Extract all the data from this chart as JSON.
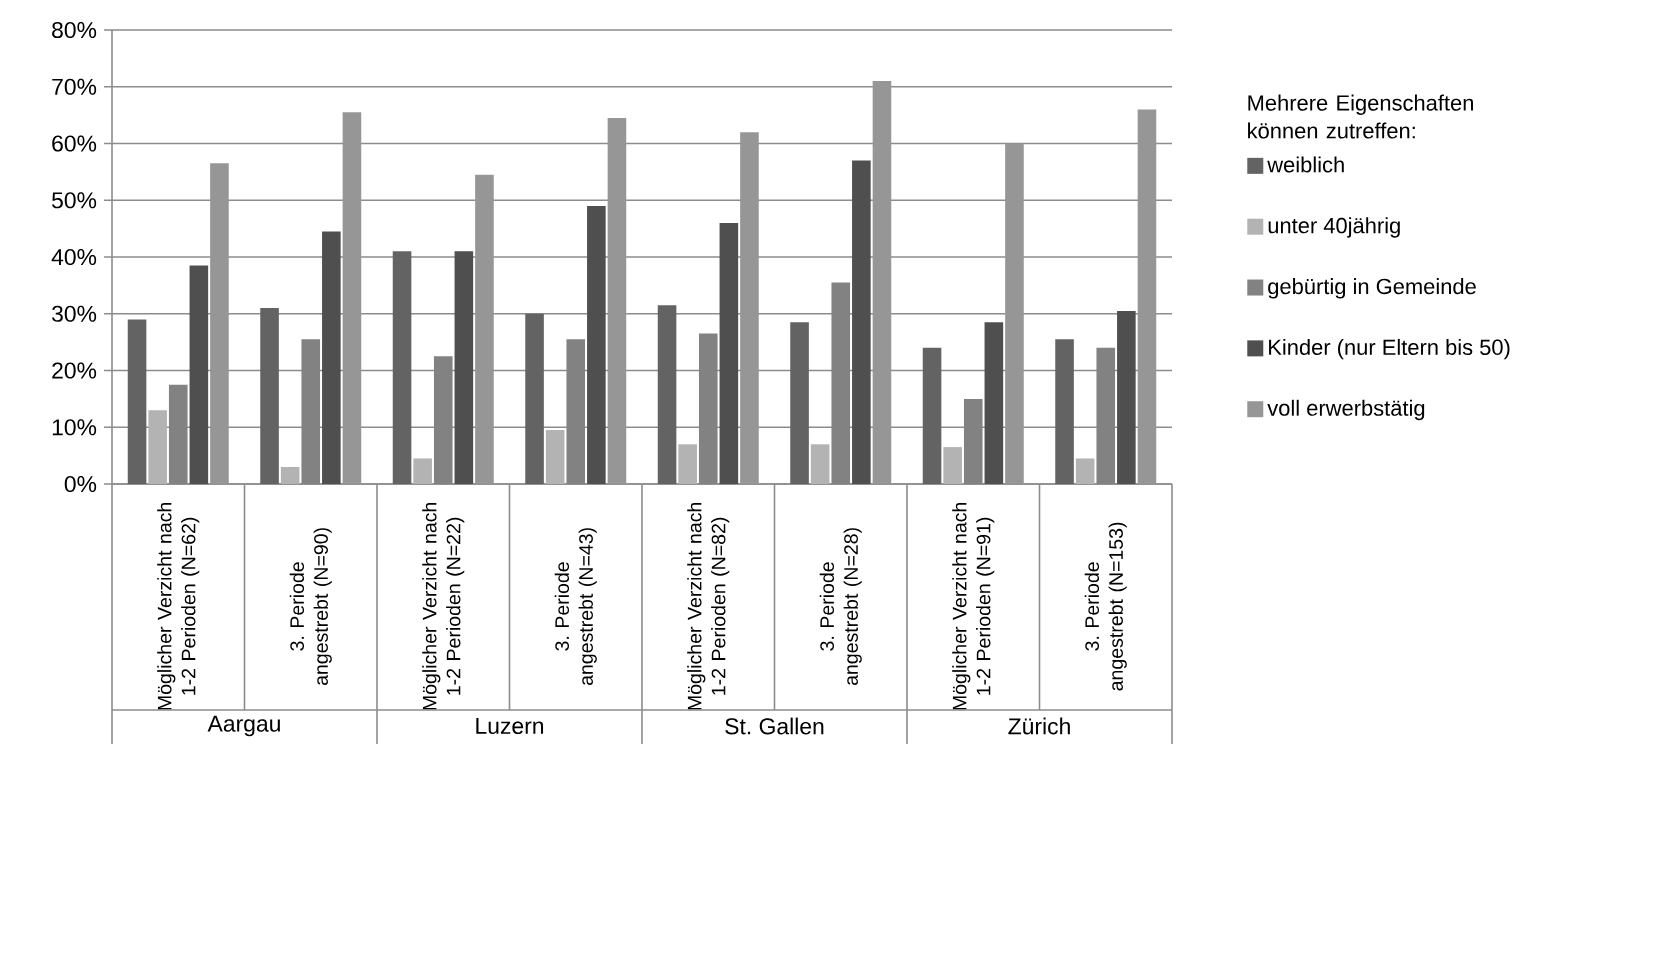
{
  "chart_data": {
    "type": "bar",
    "categories": [
      "Möglicher Verzicht nach 1-2 Perioden (N=62)",
      "3. Periode angestrebt (N=90)",
      "Möglicher Verzicht nach 1-2 Perioden (N=22)",
      "3. Periode angestrebt (N=43)",
      "Möglicher Verzicht nach 1-2 Perioden (N=82)",
      "3. Periode angestrebt (N=28)",
      "Möglicher Verzicht nach 1-2 Perioden (N=91)",
      "3. Periode angestrebt (N=153)"
    ],
    "series": [
      {
        "name": "weiblich",
        "color": "#636363",
        "values": [
          29,
          31,
          41,
          30,
          31.5,
          28.5,
          24,
          25.5
        ]
      },
      {
        "name": "unter 40jährig",
        "color": "#b3b3b3",
        "values": [
          13,
          3,
          4.5,
          9.5,
          7,
          7,
          6.5,
          4.5
        ]
      },
      {
        "name": "gebürtig in Gemeinde",
        "color": "#828282",
        "values": [
          17.5,
          25.5,
          22.5,
          25.5,
          26.5,
          35.5,
          15,
          24
        ]
      },
      {
        "name": "Kinder (nur Eltern bis 50)",
        "color": "#4f4f4f",
        "values": [
          38.5,
          44.5,
          41,
          49,
          46,
          57,
          28.5,
          30.5
        ]
      },
      {
        "name": "voll erwerbstätig",
        "color": "#969696",
        "values": [
          56.5,
          65.5,
          54.5,
          64.5,
          62,
          71,
          60,
          66
        ]
      }
    ],
    "legend_title": "Mehrere Eigenschaften können zutreffen:",
    "annotations": [
      "Aargau",
      "Luzern",
      "St. Gallen",
      "Zürich"
    ],
    "ylim": [
      0,
      80
    ],
    "yticks": [
      {
        "value": 0,
        "label": "0%"
      },
      {
        "value": 10,
        "label": "10%"
      },
      {
        "value": 20,
        "label": "20%"
      },
      {
        "value": 30,
        "label": "30%"
      },
      {
        "value": 40,
        "label": "40%"
      },
      {
        "value": 50,
        "label": "50%"
      },
      {
        "value": 60,
        "label": "60%"
      },
      {
        "value": 70,
        "label": "70%"
      },
      {
        "value": 80,
        "label": "80%"
      }
    ],
    "grid": "y",
    "legend": "right"
  }
}
